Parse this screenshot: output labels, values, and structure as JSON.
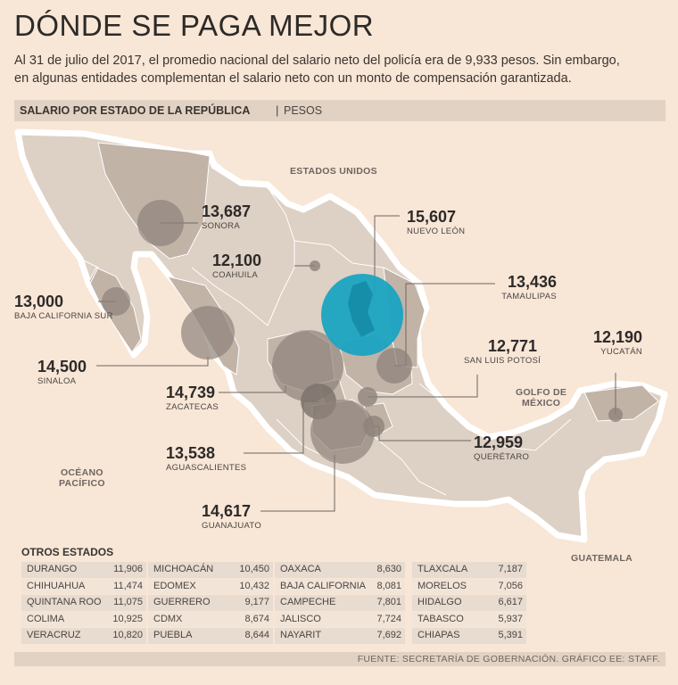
{
  "title": "DÓNDE SE PAGA MEJOR",
  "subtitle_line1": "Al 31 de julio del 2017, el promedio nacional del salario neto del policía era de 9,933 pesos. Sin embargo,",
  "subtitle_line2": "en algunas entidades complementan el salario neto con un monto de compensación garantizada.",
  "section_title": "SALARIO POR ESTADO DE LA REPÚBLICA",
  "section_unit": "PESOS",
  "geo_labels": {
    "usa": "ESTADOS UNIDOS",
    "gulf1": "GOLFO DE",
    "gulf2": "MÉXICO",
    "ocean1": "OCÉANO",
    "ocean2": "PACÍFICO",
    "guatemala": "GUATEMALA"
  },
  "colors": {
    "highlight": "#1aa3c1",
    "bubble": "#8d827b",
    "land": "#ddd0c4",
    "highlight_state": "#c2b3a7",
    "background": "#f8e6d6"
  },
  "states": {
    "sonora": {
      "value": "13,687",
      "name": "SONORA"
    },
    "coahuila": {
      "value": "12,100",
      "name": "COAHUILA"
    },
    "nuevo_leon": {
      "value": "15,607",
      "name": "NUEVO LEÓN"
    },
    "tamaulipas": {
      "value": "13,436",
      "name": "TAMAULIPAS"
    },
    "bcs": {
      "value": "13,000",
      "name": "BAJA CALIFORNIA SUR"
    },
    "sinaloa": {
      "value": "14,500",
      "name": "SINALOA"
    },
    "zacatecas": {
      "value": "14,739",
      "name": "ZACATECAS"
    },
    "aguascalientes": {
      "value": "13,538",
      "name": "AGUASCALIENTES"
    },
    "guanajuato": {
      "value": "14,617",
      "name": "GUANAJUATO"
    },
    "slp": {
      "value": "12,771",
      "name": "SAN LUIS POTOSÍ"
    },
    "yucatan": {
      "value": "12,190",
      "name": "YUCATÁN"
    },
    "queretaro": {
      "value": "12,959",
      "name": "QUERÉTARO"
    }
  },
  "others_title": "OTROS ESTADOS",
  "others": [
    [
      {
        "n": "DURANGO",
        "v": "11,906"
      },
      {
        "n": "CHIHUAHUA",
        "v": "11,474"
      },
      {
        "n": "QUINTANA ROO",
        "v": "11,075"
      },
      {
        "n": "COLIMA",
        "v": "10,925"
      },
      {
        "n": "VERACRUZ",
        "v": "10,820"
      }
    ],
    [
      {
        "n": "MICHOACÁN",
        "v": "10,450"
      },
      {
        "n": "EDOMEX",
        "v": "10,432"
      },
      {
        "n": "GUERRERO",
        "v": "9,177"
      },
      {
        "n": "CDMX",
        "v": "8,674"
      },
      {
        "n": "PUEBLA",
        "v": "8,644"
      }
    ],
    [
      {
        "n": "OAXACA",
        "v": "8,630"
      },
      {
        "n": "BAJA CALIFORNIA",
        "v": "8,081"
      },
      {
        "n": "CAMPECHE",
        "v": "7,801"
      },
      {
        "n": "JALISCO",
        "v": "7,724"
      },
      {
        "n": "NAYARIT",
        "v": "7,692"
      }
    ],
    [
      {
        "n": "TLAXCALA",
        "v": "7,187"
      },
      {
        "n": "MORELOS",
        "v": "7,056"
      },
      {
        "n": "HIDALGO",
        "v": "6,617"
      },
      {
        "n": "TABASCO",
        "v": "5,937"
      },
      {
        "n": "CHIAPAS",
        "v": "5,391"
      }
    ]
  ],
  "source": "FUENTE: SECRETARÍA DE GOBERNACIÓN.  GRÁFICO EE: STAFF."
}
